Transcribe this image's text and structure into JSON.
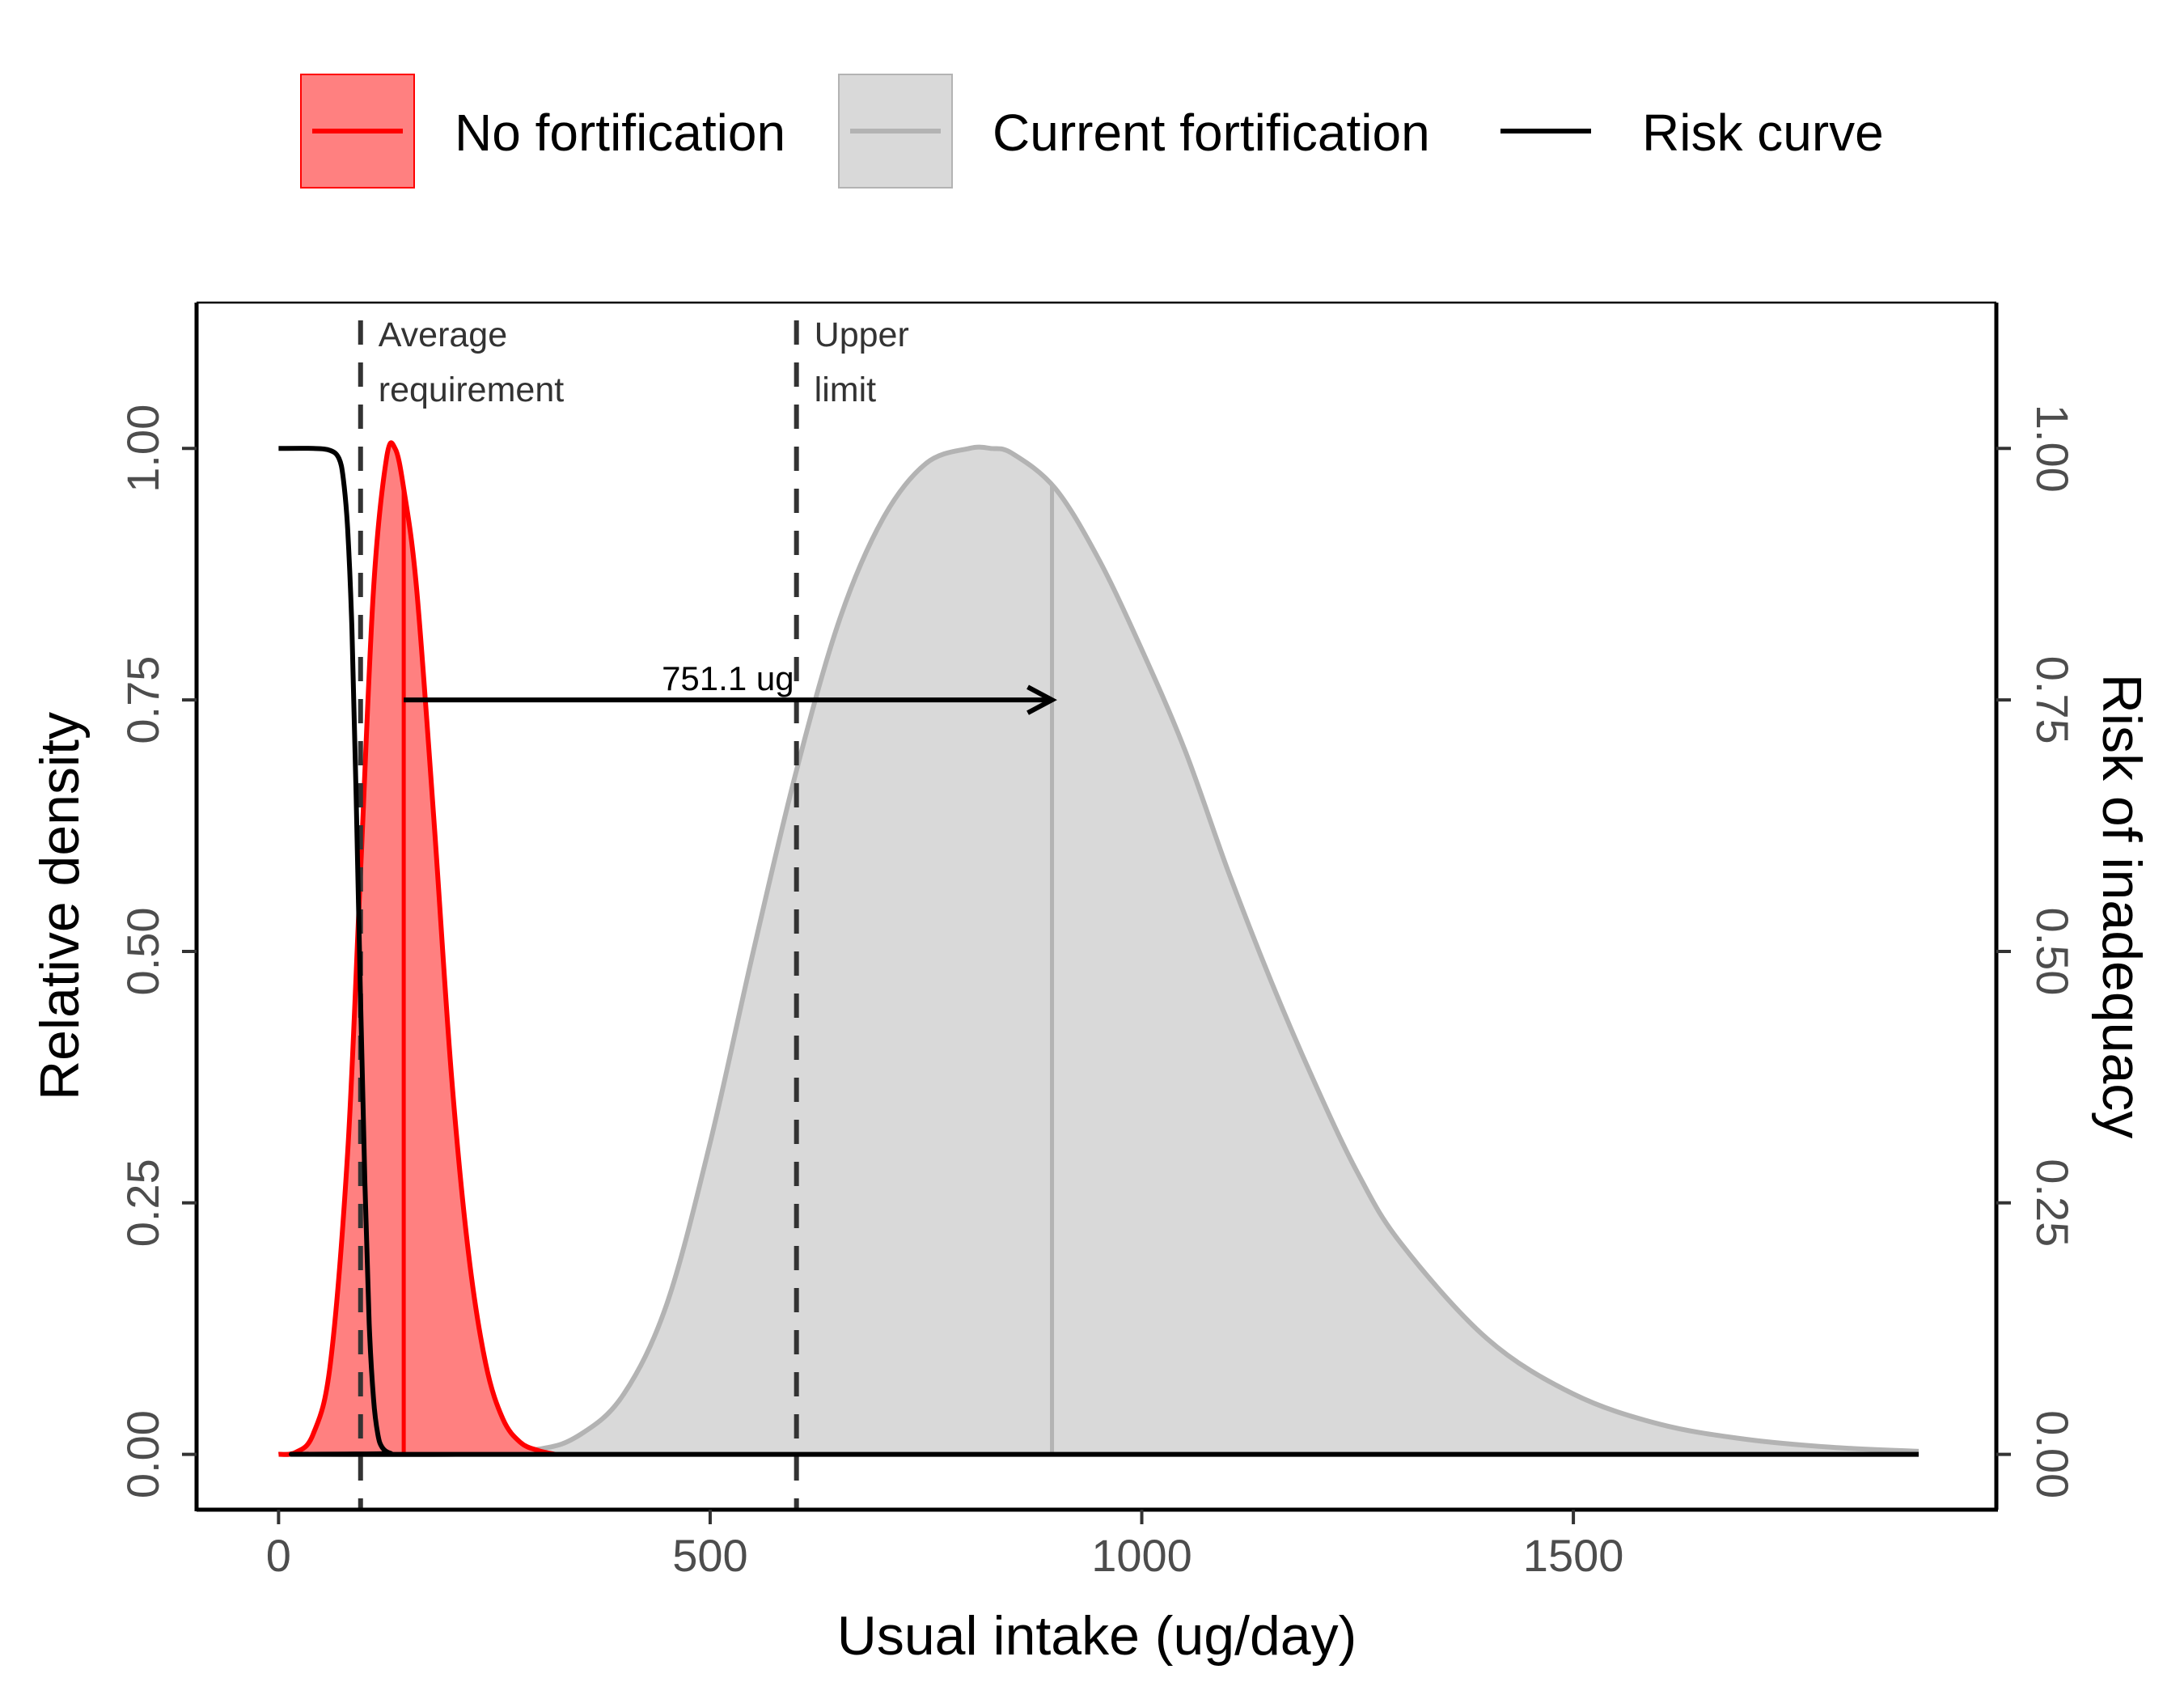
{
  "chart_data": {
    "type": "area",
    "xlabel": "Usual intake (ug/day)",
    "ylabel": "Relative density",
    "y2label": "Risk of inadequacy",
    "xlim": [
      -95,
      1990
    ],
    "ylim": [
      -0.055,
      1.145
    ],
    "y2lim": [
      -0.055,
      1.145
    ],
    "x_ticks": [
      0,
      500,
      1000,
      1500
    ],
    "x_tick_labels": [
      "0",
      "500",
      "1000",
      "1500"
    ],
    "y_ticks": [
      0,
      0.25,
      0.5,
      0.75,
      1
    ],
    "y_tick_labels": [
      "0.00",
      "0.25",
      "0.50",
      "0.75",
      "1.00"
    ],
    "y2_tick_labels": [
      "0.00",
      "0.25",
      "0.50",
      "0.75",
      "1.00"
    ],
    "grid": false,
    "legend_position": "top",
    "legend": [
      {
        "label": "No fortification",
        "kind": "fill",
        "fill": "#ff8080",
        "stroke": "#ff0000"
      },
      {
        "label": "Current fortification",
        "kind": "fill",
        "fill": "#d9d9d9",
        "stroke": "#b3b3b3"
      },
      {
        "label": "Risk curve",
        "kind": "line",
        "stroke": "#000000"
      }
    ],
    "series": [
      {
        "name": "No fortification",
        "color": "#ff0000",
        "fill": "#ff8080",
        "x": [
          0,
          20,
          40,
          60,
          80,
          95,
          110,
          125,
          135,
          145,
          160,
          180,
          200,
          220,
          240,
          260,
          280,
          300,
          320
        ],
        "values": [
          0,
          0.002,
          0.02,
          0.09,
          0.3,
          0.58,
          0.86,
          0.99,
          1.0,
          0.96,
          0.86,
          0.63,
          0.38,
          0.2,
          0.09,
          0.035,
          0.012,
          0.004,
          0.0
        ],
        "median": 145
      },
      {
        "name": "Current fortification",
        "color": "#b3b3b3",
        "fill": "#d9d9d9",
        "x": [
          0,
          200,
          300,
          350,
          400,
          450,
          500,
          550,
          600,
          650,
          700,
          750,
          800,
          825,
          850,
          900,
          950,
          1000,
          1050,
          1100,
          1150,
          1200,
          1250,
          1300,
          1400,
          1500,
          1600,
          1700,
          1800,
          1900
        ],
        "values": [
          0,
          0,
          0.005,
          0.02,
          0.06,
          0.15,
          0.31,
          0.5,
          0.68,
          0.83,
          0.93,
          0.985,
          1.0,
          1.0,
          0.995,
          0.96,
          0.89,
          0.8,
          0.7,
          0.58,
          0.47,
          0.37,
          0.28,
          0.21,
          0.115,
          0.06,
          0.03,
          0.015,
          0.007,
          0.003
        ],
        "median": 896
      },
      {
        "name": "Risk curve",
        "color": "#000000",
        "x": [
          0,
          40,
          60,
          70,
          75,
          80,
          85,
          90,
          95,
          100,
          105,
          110,
          115,
          120,
          130,
          150,
          1900
        ],
        "values": [
          1,
          1,
          0.998,
          0.99,
          0.97,
          0.92,
          0.82,
          0.65,
          0.45,
          0.27,
          0.13,
          0.055,
          0.02,
          0.007,
          0.001,
          0,
          0
        ]
      }
    ],
    "reference_lines": [
      {
        "x": 95,
        "label_line1": "Average",
        "label_line2": "requirement"
      },
      {
        "x": 600,
        "label_line1": "Upper",
        "label_line2": "limit"
      }
    ],
    "annotation": {
      "label": "751.1 ug",
      "x_start": 145,
      "x_end": 896,
      "y": 0.75
    }
  }
}
